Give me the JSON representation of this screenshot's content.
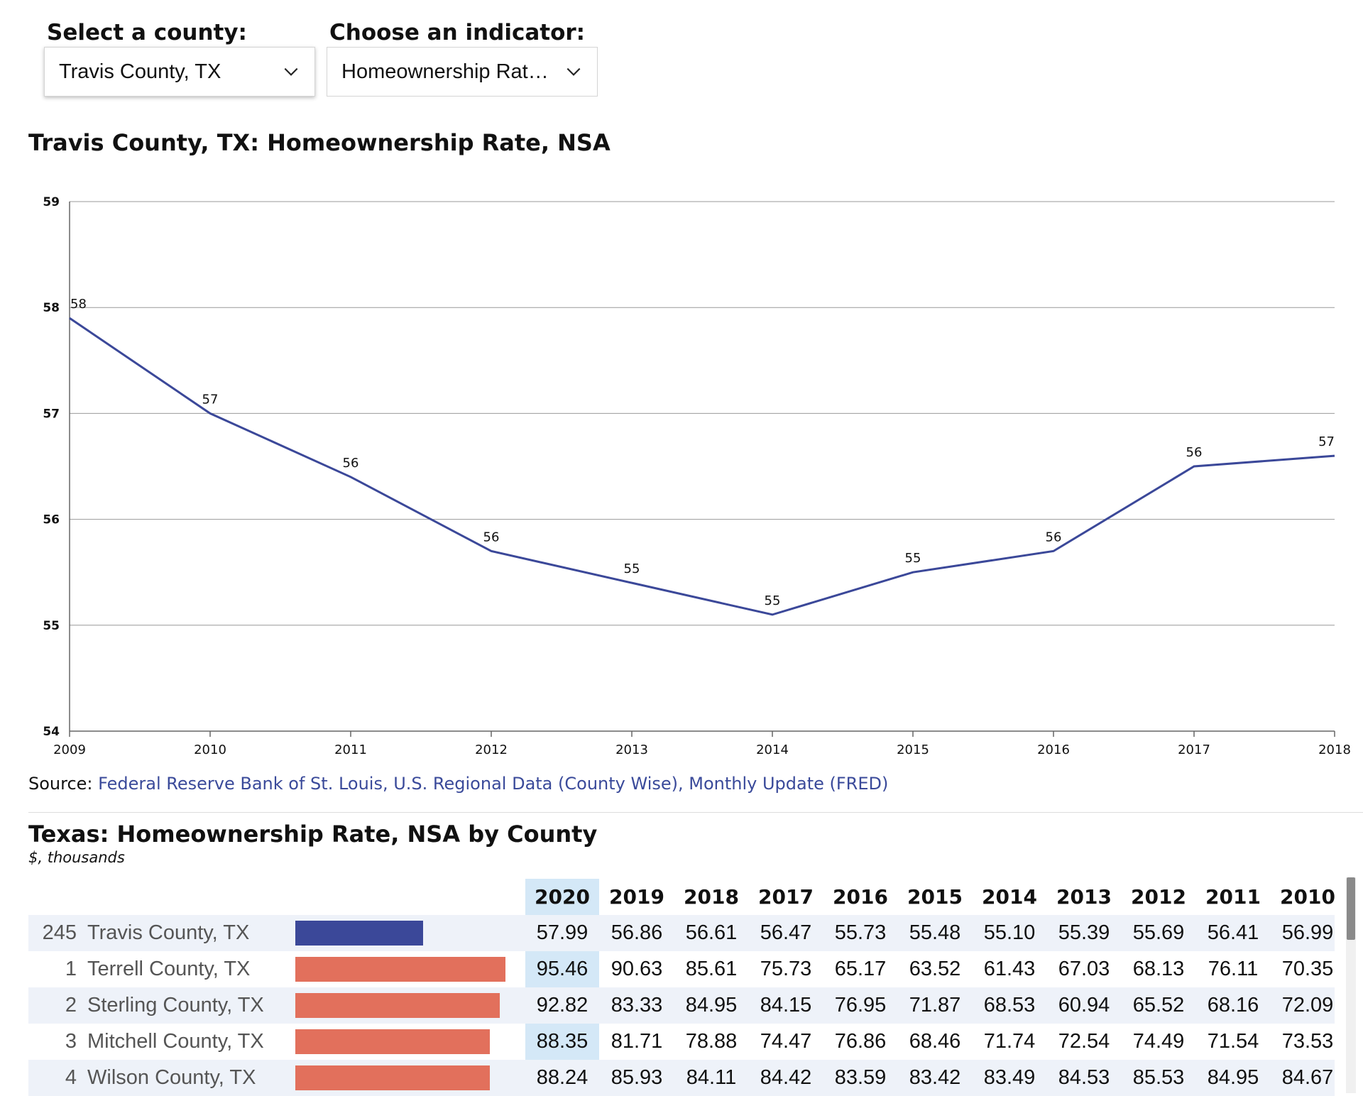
{
  "controls": {
    "county_label": "Select a county:",
    "county_value": "Travis County, TX",
    "indicator_label": "Choose an indicator:",
    "indicator_value": "Homeownership Rat…"
  },
  "chart_title": "Travis County, TX: Homeownership Rate, NSA",
  "chart_data": {
    "type": "line",
    "x": [
      2009,
      2010,
      2011,
      2012,
      2013,
      2014,
      2015,
      2016,
      2017,
      2018
    ],
    "series": [
      {
        "values": [
          57.9,
          57.0,
          56.4,
          55.7,
          55.4,
          55.1,
          55.5,
          55.7,
          56.5,
          56.6
        ],
        "labels": [
          "58",
          "57",
          "56",
          "56",
          "55",
          "55",
          "55",
          "56",
          "56",
          "57"
        ]
      }
    ],
    "ylim": [
      54,
      59
    ],
    "yticks": [
      54,
      55,
      56,
      57,
      58,
      59
    ],
    "grid": true,
    "line_color": "#3b4899"
  },
  "source": {
    "prefix": "Source: ",
    "link": "Federal Reserve Bank of St. Louis, U.S. Regional Data (County Wise), Monthly Update (FRED)"
  },
  "table": {
    "title": "Texas: Homeownership Rate, NSA by County",
    "subtitle": "$, thousands",
    "years": [
      "2020",
      "2019",
      "2018",
      "2017",
      "2016",
      "2015",
      "2014",
      "2013",
      "2012",
      "2011",
      "2010"
    ],
    "rows": [
      {
        "rank": "245",
        "county": "Travis County, TX",
        "bar": 57.99,
        "color": "#3b4899",
        "values": [
          "57.99",
          "56.86",
          "56.61",
          "56.47",
          "55.73",
          "55.48",
          "55.10",
          "55.39",
          "55.69",
          "56.41",
          "56.99"
        ]
      },
      {
        "rank": "1",
        "county": "Terrell County, TX",
        "bar": 95.46,
        "color": "#e2705c",
        "values": [
          "95.46",
          "90.63",
          "85.61",
          "75.73",
          "65.17",
          "63.52",
          "61.43",
          "67.03",
          "68.13",
          "76.11",
          "70.35"
        ]
      },
      {
        "rank": "2",
        "county": "Sterling County, TX",
        "bar": 92.82,
        "color": "#e2705c",
        "values": [
          "92.82",
          "83.33",
          "84.95",
          "84.15",
          "76.95",
          "71.87",
          "68.53",
          "60.94",
          "65.52",
          "68.16",
          "72.09"
        ]
      },
      {
        "rank": "3",
        "county": "Mitchell County, TX",
        "bar": 88.35,
        "color": "#e2705c",
        "values": [
          "88.35",
          "81.71",
          "78.88",
          "74.47",
          "76.86",
          "68.46",
          "71.74",
          "72.54",
          "74.49",
          "71.54",
          "73.53"
        ]
      },
      {
        "rank": "4",
        "county": "Wilson County, TX",
        "bar": 88.24,
        "color": "#e2705c",
        "values": [
          "88.24",
          "85.93",
          "84.11",
          "84.42",
          "83.59",
          "83.42",
          "83.49",
          "84.53",
          "85.53",
          "84.95",
          "84.67"
        ]
      }
    ]
  }
}
